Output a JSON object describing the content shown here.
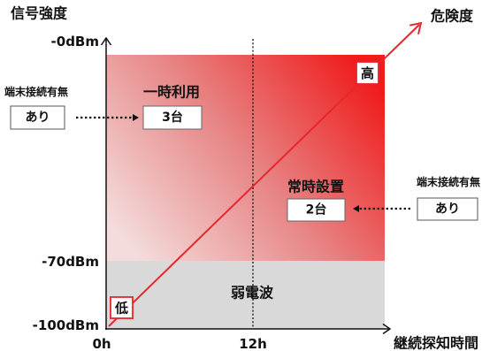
{
  "y_axis": {
    "title": "信号強度",
    "ticks": [
      "-0dBm",
      "-70dBm",
      "-100dBm"
    ]
  },
  "x_axis": {
    "title": "継続探知時間",
    "ticks": [
      "0h",
      "12h"
    ]
  },
  "danger_axis": {
    "title": "危険度",
    "high_label": "高",
    "low_label": "低"
  },
  "zones": {
    "weak_signal_label": "弱電波"
  },
  "temporary_use": {
    "label": "一時利用",
    "count": "3台",
    "connection_label": "端末接続有無",
    "connection_value": "あり"
  },
  "permanent_install": {
    "label": "常時設置",
    "count": "2台",
    "connection_label": "端末接続有無",
    "connection_value": "あり"
  },
  "colors": {
    "danger_red": "#e8262b",
    "risk_zone_light": "#f4dcdc",
    "risk_zone_mid": "#e78585",
    "risk_zone_strong": "#f01c1c",
    "weak_zone_gray": "#d9d9d9"
  }
}
